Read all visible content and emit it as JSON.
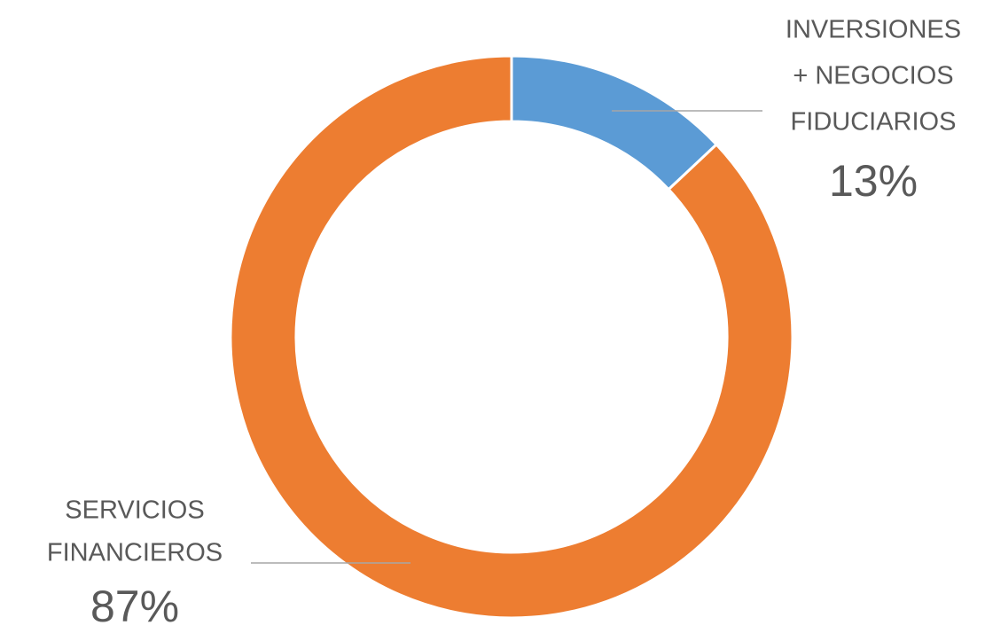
{
  "chart_data": {
    "type": "donut",
    "categories": [
      [
        "INVERSIONES",
        "+ NEGOCIOS",
        "FIDUCIARIOS"
      ],
      [
        "SERVICIOS",
        "FINANCIEROS"
      ]
    ],
    "values": [
      13,
      87
    ],
    "value_labels": [
      "13%",
      "87%"
    ],
    "colors": [
      "#5b9bd5",
      "#ed7d31"
    ]
  }
}
